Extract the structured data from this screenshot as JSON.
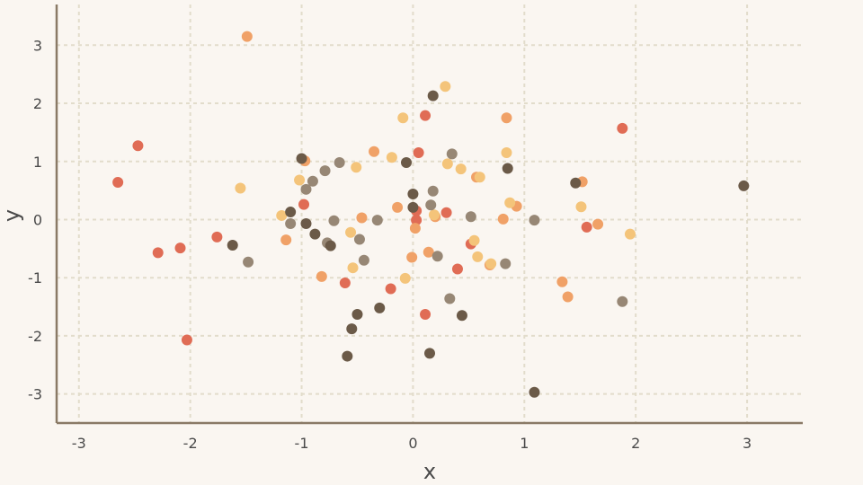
{
  "chart_data": {
    "type": "scatter",
    "title": "",
    "xlabel": "x",
    "ylabel": "y",
    "xlim": [
      -3.2,
      3.5
    ],
    "ylim": [
      -3.5,
      3.7
    ],
    "xticks": [
      -3,
      -2,
      -1,
      0,
      1,
      2,
      3
    ],
    "yticks": [
      -3,
      -2,
      -1,
      0,
      1,
      2,
      3
    ],
    "xtick_labels": [
      "-3",
      "-2",
      "-1",
      "0",
      "1",
      "2",
      "3"
    ],
    "ytick_labels": [
      "-3",
      "-2",
      "-1",
      "0",
      "1",
      "2",
      "3"
    ],
    "grid": true,
    "legend": "none",
    "colors": [
      "#e06c55",
      "#f0a167",
      "#f4c47a",
      "#978775",
      "#6b5a48"
    ],
    "series": [
      {
        "color": "#e06c55",
        "points": [
          [
            -2.65,
            0.64
          ],
          [
            -2.47,
            1.27
          ],
          [
            -2.29,
            -0.57
          ],
          [
            -2.09,
            -0.49
          ],
          [
            -2.03,
            -2.07
          ],
          [
            -1.76,
            -0.3
          ],
          [
            -0.98,
            0.26
          ],
          [
            -0.61,
            -1.09
          ],
          [
            -0.2,
            -1.19
          ],
          [
            0.03,
            0.15
          ],
          [
            0.03,
            -0.01
          ],
          [
            0.05,
            1.15
          ],
          [
            0.11,
            1.79
          ],
          [
            0.11,
            -1.63
          ],
          [
            0.3,
            0.12
          ],
          [
            0.4,
            -0.85
          ],
          [
            0.52,
            -0.42
          ],
          [
            1.56,
            -0.13
          ],
          [
            1.88,
            1.57
          ]
        ]
      },
      {
        "color": "#f0a167",
        "points": [
          [
            -1.49,
            3.15
          ],
          [
            -1.14,
            -0.35
          ],
          [
            -0.97,
            1.01
          ],
          [
            -0.82,
            -0.98
          ],
          [
            -0.46,
            0.03
          ],
          [
            -0.35,
            1.17
          ],
          [
            -0.14,
            0.21
          ],
          [
            -0.01,
            -0.65
          ],
          [
            0.02,
            -0.15
          ],
          [
            0.14,
            -0.56
          ],
          [
            0.2,
            0.05
          ],
          [
            0.57,
            0.73
          ],
          [
            0.69,
            -0.78
          ],
          [
            0.81,
            0.01
          ],
          [
            0.84,
            1.75
          ],
          [
            0.93,
            0.23
          ],
          [
            1.34,
            -1.07
          ],
          [
            1.39,
            -1.33
          ],
          [
            1.52,
            0.65
          ],
          [
            1.66,
            -0.08
          ]
        ]
      },
      {
        "color": "#f4c47a",
        "points": [
          [
            -1.55,
            0.54
          ],
          [
            -1.18,
            0.07
          ],
          [
            -1.02,
            0.68
          ],
          [
            -0.56,
            -0.22
          ],
          [
            -0.54,
            -0.83
          ],
          [
            -0.51,
            0.9
          ],
          [
            -0.19,
            1.07
          ],
          [
            -0.09,
            1.75
          ],
          [
            -0.07,
            -1.01
          ],
          [
            0.19,
            0.08
          ],
          [
            0.29,
            2.29
          ],
          [
            0.31,
            0.96
          ],
          [
            0.43,
            0.87
          ],
          [
            0.55,
            -0.36
          ],
          [
            0.58,
            -0.64
          ],
          [
            0.6,
            0.73
          ],
          [
            0.7,
            -0.76
          ],
          [
            0.84,
            1.15
          ],
          [
            0.87,
            0.29
          ],
          [
            1.51,
            0.22
          ],
          [
            1.95,
            -0.25
          ]
        ]
      },
      {
        "color": "#978775",
        "points": [
          [
            -1.48,
            -0.73
          ],
          [
            -1.1,
            -0.07
          ],
          [
            -0.96,
            0.52
          ],
          [
            -0.9,
            0.66
          ],
          [
            -0.79,
            0.84
          ],
          [
            -0.77,
            -0.4
          ],
          [
            -0.71,
            -0.02
          ],
          [
            -0.66,
            0.98
          ],
          [
            -0.48,
            -0.34
          ],
          [
            -0.44,
            -0.7
          ],
          [
            -0.32,
            -0.01
          ],
          [
            0.16,
            0.25
          ],
          [
            0.18,
            0.49
          ],
          [
            0.22,
            -0.63
          ],
          [
            0.33,
            -1.36
          ],
          [
            0.35,
            1.13
          ],
          [
            0.52,
            0.05
          ],
          [
            0.83,
            -0.76
          ],
          [
            1.09,
            -0.01
          ],
          [
            1.88,
            -1.41
          ]
        ]
      },
      {
        "color": "#6b5a48",
        "points": [
          [
            -1.62,
            -0.44
          ],
          [
            -1.1,
            0.13
          ],
          [
            -1.0,
            1.05
          ],
          [
            -0.96,
            -0.07
          ],
          [
            -0.88,
            -0.25
          ],
          [
            -0.74,
            -0.45
          ],
          [
            -0.59,
            -2.35
          ],
          [
            -0.55,
            -1.88
          ],
          [
            -0.5,
            -1.63
          ],
          [
            -0.3,
            -1.52
          ],
          [
            -0.06,
            0.98
          ],
          [
            0.0,
            0.44
          ],
          [
            0.0,
            0.21
          ],
          [
            0.15,
            -2.3
          ],
          [
            0.18,
            2.13
          ],
          [
            0.44,
            -1.65
          ],
          [
            0.85,
            0.88
          ],
          [
            1.09,
            -2.97
          ],
          [
            1.46,
            0.63
          ],
          [
            2.97,
            0.58
          ]
        ]
      }
    ]
  }
}
